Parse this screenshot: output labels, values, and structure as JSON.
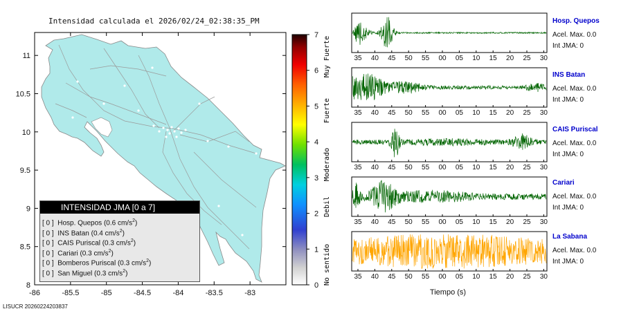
{
  "title": "Intensidad calculada el 2026/02/24_02:38:35_PM",
  "footer": "LISUCR 20260224203837",
  "map": {
    "x_ticks": [
      "-86",
      "-85.5",
      "-85",
      "-84.5",
      "-84",
      "-83.5",
      "-83"
    ],
    "y_ticks": [
      "11",
      "10.5",
      "10",
      "9.5",
      "9",
      "8.5",
      "8"
    ],
    "x_values": [
      -86,
      -85.5,
      -85,
      -84.5,
      -84,
      -83.5,
      -83
    ],
    "y_values": [
      11,
      10.5,
      10,
      9.5,
      9,
      8.5,
      8
    ],
    "xlim": [
      -86,
      -82.5
    ],
    "ylim": [
      8,
      11.3
    ],
    "land_color": "#b0eaea"
  },
  "legend": {
    "title": "INTENSIDAD JMA [0 a 7]",
    "rows": [
      {
        "index": "[ 0 ]",
        "label": "Hosp. Quepos (0.6 cm/s",
        "tail": ")"
      },
      {
        "index": "[ 0 ]",
        "label": "INS Batan (0.4 cm/s",
        "tail": ")"
      },
      {
        "index": "[ 0 ]",
        "label": "CAIS Puriscal (0.3 cm/s",
        "tail": ")"
      },
      {
        "index": "[ 0 ]",
        "label": "Cariari (0.3 cm/s",
        "tail": ")"
      },
      {
        "index": "[ 0 ]",
        "label": "Bomberos Puriscal (0.3 cm/s",
        "tail": ")"
      },
      {
        "index": "[ 0 ]",
        "label": "San Miguel (0.3 cm/s",
        "tail": ")"
      }
    ],
    "superscript": "2"
  },
  "colorbar": {
    "ticks": [
      "0",
      "1",
      "2",
      "3",
      "4",
      "5",
      "6",
      "7"
    ],
    "tick_values": [
      0,
      1,
      2,
      3,
      4,
      5,
      6,
      7
    ],
    "categories": [
      "No sentido",
      "Debil",
      "Moderado",
      "Fuerte",
      "Muy Fuerte"
    ]
  },
  "seismograms": {
    "xlabel": "Tiempo (s)",
    "time_ticks": [
      "35",
      "40",
      "45",
      "50",
      "55",
      "00",
      "05",
      "10",
      "15",
      "20",
      "25",
      "30"
    ],
    "traces": [
      {
        "name": "Hosp. Quepos",
        "acel": "Acel. Max. 0.0",
        "jma": "Int JMA: 0",
        "color": "#006400"
      },
      {
        "name": "INS Batan",
        "acel": "Acel. Max. 0.0",
        "jma": "Int JMA: 0",
        "color": "#006400"
      },
      {
        "name": "CAIS Puriscal",
        "acel": "Acel. Max. 0.0",
        "jma": "Int JMA: 0",
        "color": "#006400"
      },
      {
        "name": "Cariari",
        "acel": "Acel. Max. 0.0",
        "jma": "Int JMA: 0",
        "color": "#006400"
      },
      {
        "name": "La Sabana",
        "acel": "Acel. Max. 0.0",
        "jma": "Int JMA: 0",
        "color": "#ffa500"
      }
    ]
  },
  "chart_data": [
    {
      "type": "map",
      "title": "Intensidad calculada el 2026/02/24_02:38:35_PM",
      "xlim": [
        -86,
        -82.5
      ],
      "ylim": [
        8,
        11.3
      ],
      "x_ticks": [
        -86,
        -85.5,
        -85,
        -84.5,
        -84,
        -83.5,
        -83
      ],
      "y_ticks": [
        8,
        8.5,
        9,
        9.5,
        10,
        10.5,
        11
      ],
      "legend_title": "INTENSIDAD JMA [0 a 7]",
      "stations": [
        {
          "name": "Hosp. Quepos",
          "intensity": 0,
          "pga_cm_s2": 0.6
        },
        {
          "name": "INS Batan",
          "intensity": 0,
          "pga_cm_s2": 0.4
        },
        {
          "name": "CAIS Puriscal",
          "intensity": 0,
          "pga_cm_s2": 0.3
        },
        {
          "name": "Cariari",
          "intensity": 0,
          "pga_cm_s2": 0.3
        },
        {
          "name": "Bomberos Puriscal",
          "intensity": 0,
          "pga_cm_s2": 0.3
        },
        {
          "name": "San Miguel",
          "intensity": 0,
          "pga_cm_s2": 0.3
        }
      ]
    },
    {
      "type": "colorbar",
      "range": [
        0,
        7
      ],
      "ticks": [
        0,
        1,
        2,
        3,
        4,
        5,
        6,
        7
      ],
      "labels": [
        "No sentido",
        "Debil",
        "Moderado",
        "Fuerte",
        "Muy Fuerte"
      ]
    },
    {
      "type": "line",
      "xlabel": "Tiempo (s)",
      "series": [
        {
          "name": "Hosp. Quepos",
          "acel_max": 0.0,
          "int_jma": 0
        },
        {
          "name": "INS Batan",
          "acel_max": 0.0,
          "int_jma": 0
        },
        {
          "name": "CAIS Puriscal",
          "acel_max": 0.0,
          "int_jma": 0
        },
        {
          "name": "Cariari",
          "acel_max": 0.0,
          "int_jma": 0
        },
        {
          "name": "La Sabana",
          "acel_max": 0.0,
          "int_jma": 0
        }
      ]
    }
  ]
}
